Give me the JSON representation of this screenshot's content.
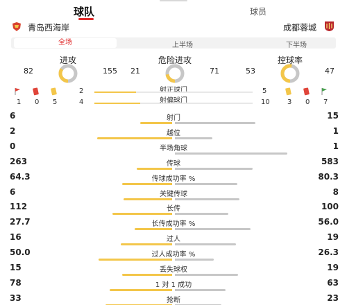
{
  "tabs": {
    "team": "球队",
    "players": "球员"
  },
  "teams": {
    "home": "青岛西海岸",
    "away": "成都蓉城"
  },
  "periods": {
    "full": "全场",
    "first": "上半场",
    "second": "下半场"
  },
  "donuts": [
    {
      "title": "进攻",
      "home": "82",
      "away": "155",
      "home_share": 0.346
    },
    {
      "title": "危险进攻",
      "home": "21",
      "away": "71",
      "home_share": 0.228
    },
    {
      "title": "控球率",
      "home": "53",
      "away": "47",
      "home_share": 0.53
    }
  ],
  "cards": {
    "home": {
      "corners": "1",
      "red": "0",
      "yellow": "5"
    },
    "away": {
      "yellow": "3",
      "red": "0",
      "corners": "7"
    }
  },
  "shots": {
    "on_target_label": "射正球门",
    "off_target_label": "射偏球门",
    "home_on": "2",
    "away_on": "5",
    "home_off": "4",
    "away_off": "10"
  },
  "stats": [
    {
      "label": "射门",
      "home": "6",
      "away": "15",
      "home_share": 0.286
    },
    {
      "label": "越位",
      "home": "2",
      "away": "1",
      "home_share": 0.667
    },
    {
      "label": "半场角球",
      "home": "0",
      "away": "1",
      "home_share": 0.0
    },
    {
      "label": "传球",
      "home": "263",
      "away": "583",
      "home_share": 0.311
    },
    {
      "label": "传球成功率 %",
      "home": "64.3",
      "away": "80.3",
      "home_share": 0.445
    },
    {
      "label": "关键传球",
      "home": "6",
      "away": "8",
      "home_share": 0.429
    },
    {
      "label": "长传",
      "home": "112",
      "away": "100",
      "home_share": 0.528
    },
    {
      "label": "长传成功率 %",
      "home": "27.7",
      "away": "56.0",
      "home_share": 0.331
    },
    {
      "label": "过人",
      "home": "16",
      "away": "19",
      "home_share": 0.457
    },
    {
      "label": "过人成功率 %",
      "home": "50.0",
      "away": "26.3",
      "home_share": 0.655
    },
    {
      "label": "丢失球权",
      "home": "15",
      "away": "19",
      "home_share": 0.441
    },
    {
      "label": "1 对 1 成功",
      "home": "78",
      "away": "63",
      "home_share": 0.553
    },
    {
      "label": "抢断",
      "home": "33",
      "away": "23",
      "home_share": 0.589
    }
  ],
  "colors": {
    "home": "#f3c64a",
    "away": "#c7c7c7",
    "accent": "#e02b2b"
  }
}
